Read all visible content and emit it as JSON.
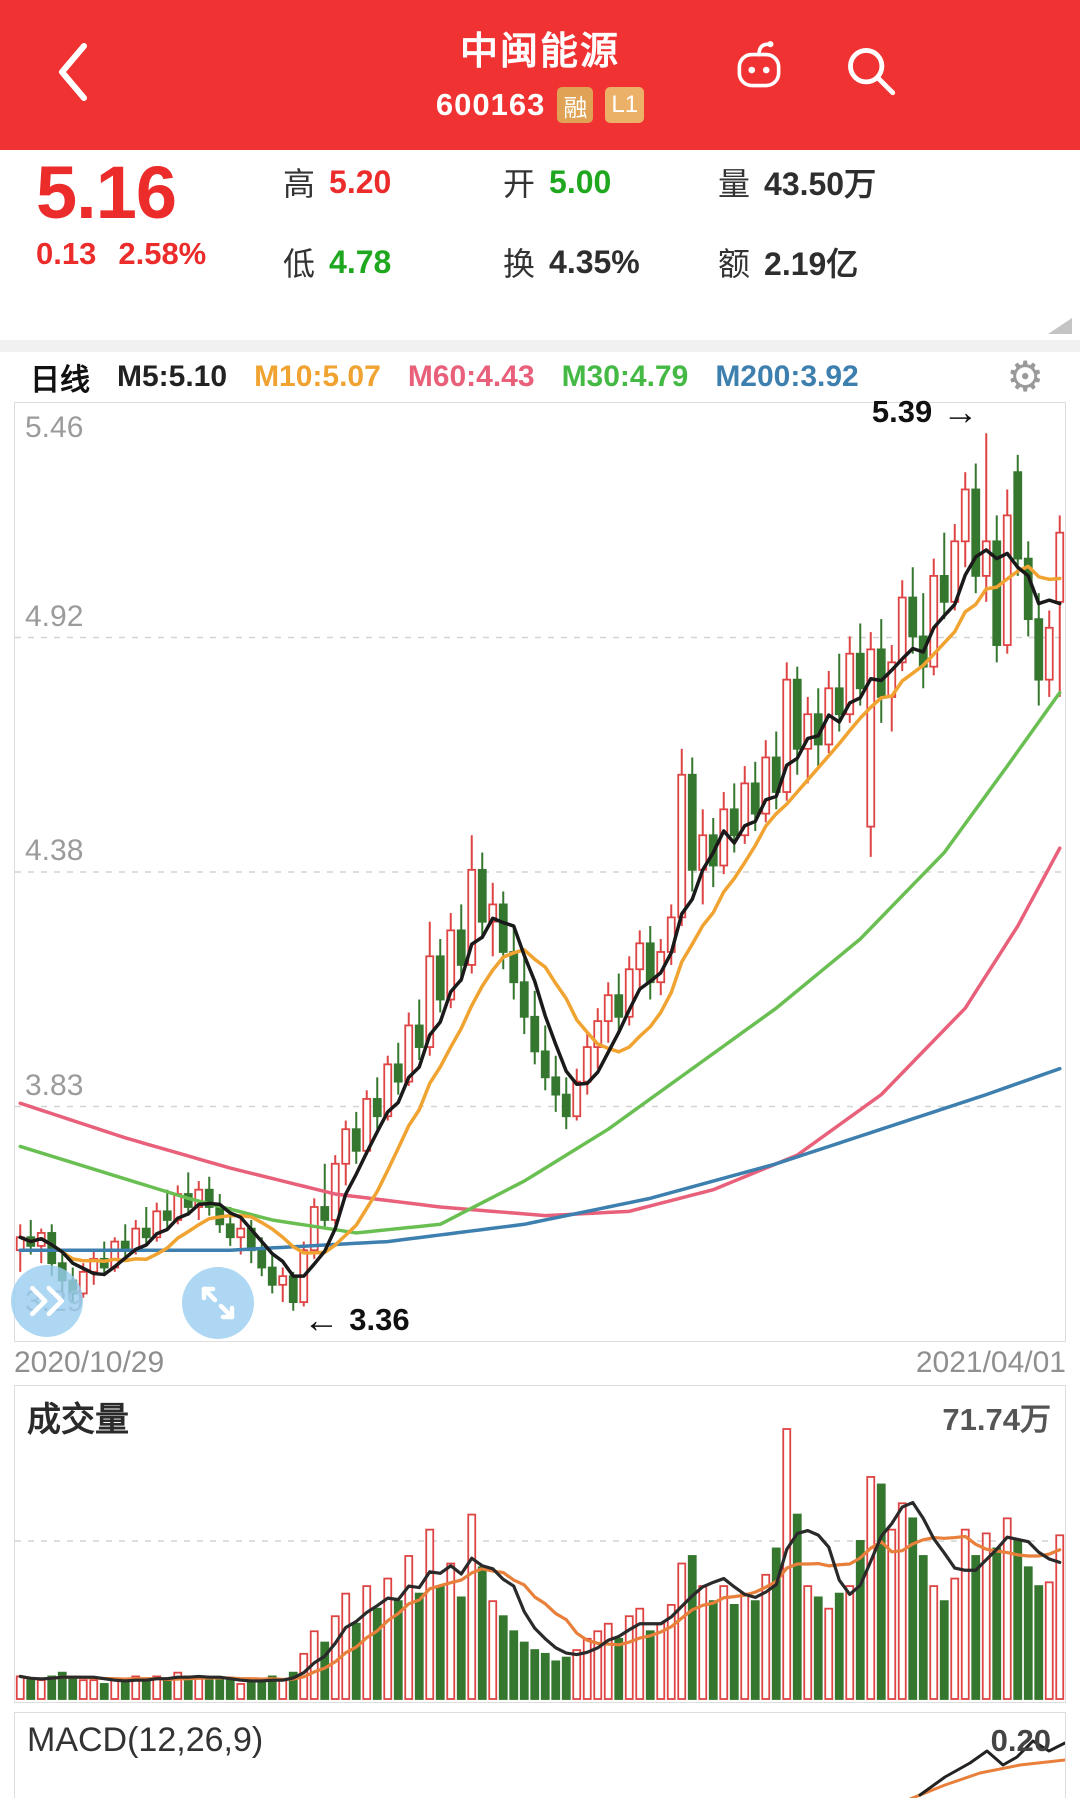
{
  "header": {
    "title": "中闽能源",
    "code": "600163",
    "badge_rong": "融",
    "badge_l1": "L1"
  },
  "icons": {
    "back": "chevron-left",
    "assistant": "robot",
    "search": "magnifier",
    "settings": "gear",
    "fast_forward": "double-chevron-right",
    "expand": "diagonal-expand"
  },
  "quote": {
    "price": "5.16",
    "change": "0.13",
    "change_pct": "2.58%",
    "fields": [
      {
        "label": "高",
        "value": "5.20",
        "tone": "red"
      },
      {
        "label": "低",
        "value": "4.78",
        "tone": "green"
      },
      {
        "label": "开",
        "value": "5.00",
        "tone": "green"
      },
      {
        "label": "换",
        "value": "4.35%",
        "tone": "dark"
      },
      {
        "label": "量",
        "value": "43.50万",
        "tone": "dark"
      },
      {
        "label": "额",
        "value": "2.19亿",
        "tone": "dark"
      }
    ]
  },
  "ma_bar": {
    "period": "日线",
    "items": [
      {
        "label": "M5:5.10",
        "color": "#222222"
      },
      {
        "label": "M10:5.07",
        "color": "#f0a330"
      },
      {
        "label": "M60:4.43",
        "color": "#e8607a"
      },
      {
        "label": "M30:4.79",
        "color": "#44b944"
      },
      {
        "label": "M200:3.92",
        "color": "#3d7fae"
      }
    ]
  },
  "dates": {
    "start": "2020/10/29",
    "end": "2021/04/01"
  },
  "volume": {
    "title": "成交量",
    "max_label": "71.74万"
  },
  "macd": {
    "title": "MACD(12,26,9)",
    "value": "0.20"
  },
  "colors": {
    "header-bg": "#f13232",
    "accent-red": "#ec2b2b",
    "accent-green": "#1fa81f",
    "up": "#de4444",
    "down": "#35772e",
    "ma5": "#1a1a1a",
    "ma10": "#f0a330",
    "ma60": "#e8607a",
    "ma30": "#6abf52",
    "ma200": "#3d7fae",
    "vol-ma5": "#2a2a2a",
    "vol-ma10": "#e87f3a",
    "badge": "#e0a355",
    "axis-text": "#9b9b9b",
    "grid": "#d4d4d4"
  },
  "chart_data": {
    "type": "candlestick",
    "title": "中闽能源 600163 日线",
    "y_axis_labels": [
      "5.46",
      "4.92",
      "4.38",
      "3.83",
      "3.29"
    ],
    "ylim": [
      3.29,
      5.46
    ],
    "high_label": "5.39",
    "low_label": "3.36",
    "grid": "dashed-horizontal",
    "x_range": [
      "2020/10/29",
      "2021/04/01"
    ],
    "volume_scale_max": 71.74,
    "volume_max_label": "71.74万",
    "candles_format": [
      "open",
      "high",
      "low",
      "close",
      "volume_wan"
    ],
    "candles": [
      [
        3.5,
        3.56,
        3.45,
        3.53,
        6
      ],
      [
        3.53,
        3.57,
        3.49,
        3.51,
        5
      ],
      [
        3.51,
        3.55,
        3.47,
        3.54,
        5
      ],
      [
        3.54,
        3.56,
        3.44,
        3.47,
        6
      ],
      [
        3.47,
        3.5,
        3.4,
        3.43,
        7
      ],
      [
        3.43,
        3.46,
        3.38,
        3.4,
        6
      ],
      [
        3.4,
        3.47,
        3.39,
        3.45,
        5
      ],
      [
        3.45,
        3.5,
        3.42,
        3.48,
        5
      ],
      [
        3.48,
        3.52,
        3.44,
        3.46,
        4
      ],
      [
        3.46,
        3.53,
        3.45,
        3.52,
        5
      ],
      [
        3.52,
        3.56,
        3.48,
        3.5,
        5
      ],
      [
        3.5,
        3.57,
        3.49,
        3.55,
        6
      ],
      [
        3.55,
        3.6,
        3.51,
        3.53,
        5
      ],
      [
        3.53,
        3.61,
        3.52,
        3.59,
        6
      ],
      [
        3.59,
        3.64,
        3.55,
        3.57,
        5
      ],
      [
        3.57,
        3.65,
        3.56,
        3.63,
        7
      ],
      [
        3.63,
        3.68,
        3.58,
        3.6,
        6
      ],
      [
        3.6,
        3.66,
        3.57,
        3.64,
        6
      ],
      [
        3.64,
        3.67,
        3.58,
        3.6,
        5
      ],
      [
        3.6,
        3.63,
        3.54,
        3.56,
        5
      ],
      [
        3.56,
        3.6,
        3.51,
        3.53,
        5
      ],
      [
        3.53,
        3.58,
        3.49,
        3.55,
        4
      ],
      [
        3.55,
        3.57,
        3.47,
        3.5,
        5
      ],
      [
        3.5,
        3.53,
        3.44,
        3.46,
        5
      ],
      [
        3.46,
        3.49,
        3.4,
        3.42,
        6
      ],
      [
        3.42,
        3.46,
        3.38,
        3.44,
        5
      ],
      [
        3.44,
        3.45,
        3.36,
        3.38,
        7
      ],
      [
        3.38,
        3.52,
        3.37,
        3.5,
        12
      ],
      [
        3.5,
        3.62,
        3.48,
        3.6,
        18
      ],
      [
        3.6,
        3.7,
        3.55,
        3.57,
        15
      ],
      [
        3.57,
        3.72,
        3.56,
        3.7,
        22
      ],
      [
        3.7,
        3.8,
        3.65,
        3.78,
        28
      ],
      [
        3.78,
        3.82,
        3.7,
        3.73,
        20
      ],
      [
        3.73,
        3.87,
        3.72,
        3.85,
        30
      ],
      [
        3.85,
        3.9,
        3.78,
        3.81,
        24
      ],
      [
        3.81,
        3.95,
        3.8,
        3.93,
        32
      ],
      [
        3.93,
        3.98,
        3.86,
        3.89,
        26
      ],
      [
        3.89,
        4.05,
        3.88,
        4.02,
        38
      ],
      [
        4.02,
        4.08,
        3.94,
        3.97,
        28
      ],
      [
        3.97,
        4.26,
        3.95,
        4.18,
        45
      ],
      [
        4.18,
        4.22,
        4.05,
        4.08,
        30
      ],
      [
        4.08,
        4.28,
        4.06,
        4.24,
        36
      ],
      [
        4.24,
        4.3,
        4.12,
        4.16,
        27
      ],
      [
        4.16,
        4.46,
        4.14,
        4.38,
        49
      ],
      [
        4.38,
        4.42,
        4.22,
        4.26,
        35
      ],
      [
        4.26,
        4.35,
        4.18,
        4.3,
        26
      ],
      [
        4.3,
        4.33,
        4.15,
        4.19,
        22
      ],
      [
        4.19,
        4.25,
        4.08,
        4.12,
        18
      ],
      [
        4.12,
        4.18,
        4.0,
        4.04,
        15
      ],
      [
        4.04,
        4.1,
        3.93,
        3.96,
        13
      ],
      [
        3.96,
        4.02,
        3.87,
        3.9,
        12
      ],
      [
        3.9,
        3.95,
        3.82,
        3.86,
        10
      ],
      [
        3.86,
        3.9,
        3.78,
        3.81,
        11
      ],
      [
        3.81,
        3.92,
        3.8,
        3.89,
        13
      ],
      [
        3.89,
        4.0,
        3.86,
        3.97,
        16
      ],
      [
        3.97,
        4.06,
        3.92,
        4.03,
        18
      ],
      [
        4.03,
        4.12,
        3.98,
        4.09,
        20
      ],
      [
        4.09,
        4.14,
        4.0,
        4.04,
        16
      ],
      [
        4.04,
        4.18,
        4.02,
        4.15,
        22
      ],
      [
        4.15,
        4.24,
        4.1,
        4.21,
        24
      ],
      [
        4.21,
        4.25,
        4.08,
        4.12,
        18
      ],
      [
        4.12,
        4.22,
        4.09,
        4.19,
        20
      ],
      [
        4.19,
        4.3,
        4.16,
        4.27,
        25
      ],
      [
        4.27,
        4.66,
        4.25,
        4.6,
        36
      ],
      [
        4.6,
        4.64,
        4.33,
        4.38,
        38
      ],
      [
        4.38,
        4.52,
        4.3,
        4.46,
        30
      ],
      [
        4.46,
        4.5,
        4.34,
        4.39,
        26
      ],
      [
        4.39,
        4.56,
        4.37,
        4.52,
        30
      ],
      [
        4.52,
        4.58,
        4.42,
        4.46,
        25
      ],
      [
        4.46,
        4.62,
        4.44,
        4.58,
        28
      ],
      [
        4.58,
        4.63,
        4.47,
        4.51,
        26
      ],
      [
        4.51,
        4.68,
        4.49,
        4.64,
        33
      ],
      [
        4.64,
        4.7,
        4.52,
        4.56,
        40
      ],
      [
        4.56,
        4.86,
        4.54,
        4.82,
        71.74
      ],
      [
        4.82,
        4.85,
        4.6,
        4.66,
        49
      ],
      [
        4.66,
        4.78,
        4.58,
        4.74,
        30
      ],
      [
        4.74,
        4.8,
        4.62,
        4.67,
        27
      ],
      [
        4.67,
        4.84,
        4.65,
        4.8,
        24
      ],
      [
        4.8,
        4.88,
        4.7,
        4.74,
        28
      ],
      [
        4.74,
        4.92,
        4.72,
        4.88,
        30
      ],
      [
        4.88,
        4.95,
        4.76,
        4.8,
        42
      ],
      [
        4.48,
        4.93,
        4.41,
        4.89,
        59
      ],
      [
        4.89,
        4.96,
        4.72,
        4.78,
        57
      ],
      [
        4.78,
        4.9,
        4.7,
        4.86,
        45
      ],
      [
        4.86,
        5.05,
        4.84,
        5.01,
        52
      ],
      [
        5.01,
        5.08,
        4.88,
        4.92,
        48
      ],
      [
        4.92,
        5.02,
        4.8,
        4.85,
        38
      ],
      [
        4.85,
        5.1,
        4.83,
        5.06,
        30
      ],
      [
        5.06,
        5.16,
        4.96,
        5.0,
        26
      ],
      [
        5.0,
        5.18,
        4.98,
        5.14,
        32
      ],
      [
        5.14,
        5.3,
        5.08,
        5.26,
        45
      ],
      [
        5.26,
        5.32,
        5.02,
        5.06,
        38
      ],
      [
        5.06,
        5.39,
        5.0,
        5.14,
        44
      ],
      [
        5.14,
        5.2,
        4.86,
        4.9,
        40
      ],
      [
        4.9,
        5.26,
        4.88,
        5.2,
        48
      ],
      [
        5.3,
        5.34,
        5.06,
        5.1,
        42
      ],
      [
        5.1,
        5.14,
        4.92,
        4.96,
        35
      ],
      [
        4.96,
        5.02,
        4.76,
        4.82,
        30
      ],
      [
        4.82,
        4.98,
        4.78,
        4.94,
        31
      ],
      [
        5.0,
        5.2,
        4.78,
        5.16,
        43.5
      ]
    ],
    "ma_overlays": {
      "m30": [
        [
          0,
          3.74
        ],
        [
          8,
          3.68
        ],
        [
          16,
          3.62
        ],
        [
          24,
          3.57
        ],
        [
          32,
          3.54
        ],
        [
          40,
          3.56
        ],
        [
          48,
          3.66
        ],
        [
          56,
          3.78
        ],
        [
          64,
          3.92
        ],
        [
          72,
          4.06
        ],
        [
          80,
          4.22
        ],
        [
          88,
          4.42
        ],
        [
          94,
          4.62
        ],
        [
          99,
          4.79
        ]
      ],
      "m60": [
        [
          0,
          3.84
        ],
        [
          10,
          3.76
        ],
        [
          20,
          3.69
        ],
        [
          30,
          3.63
        ],
        [
          40,
          3.6
        ],
        [
          50,
          3.58
        ],
        [
          58,
          3.59
        ],
        [
          66,
          3.64
        ],
        [
          74,
          3.72
        ],
        [
          82,
          3.86
        ],
        [
          90,
          4.06
        ],
        [
          95,
          4.25
        ],
        [
          99,
          4.43
        ]
      ],
      "m200": [
        [
          0,
          3.5
        ],
        [
          20,
          3.5
        ],
        [
          35,
          3.52
        ],
        [
          48,
          3.56
        ],
        [
          60,
          3.62
        ],
        [
          72,
          3.7
        ],
        [
          82,
          3.78
        ],
        [
          92,
          3.86
        ],
        [
          99,
          3.92
        ]
      ]
    },
    "macd_preview": {
      "dif": [
        [
          905,
          82
        ],
        [
          930,
          64
        ],
        [
          955,
          50
        ],
        [
          972,
          38
        ],
        [
          988,
          52
        ],
        [
          1002,
          44
        ],
        [
          1018,
          28
        ],
        [
          1034,
          38
        ],
        [
          1050,
          30
        ]
      ],
      "dea": [
        [
          895,
          86
        ],
        [
          930,
          72
        ],
        [
          965,
          60
        ],
        [
          1005,
          52
        ],
        [
          1050,
          47
        ]
      ]
    }
  }
}
